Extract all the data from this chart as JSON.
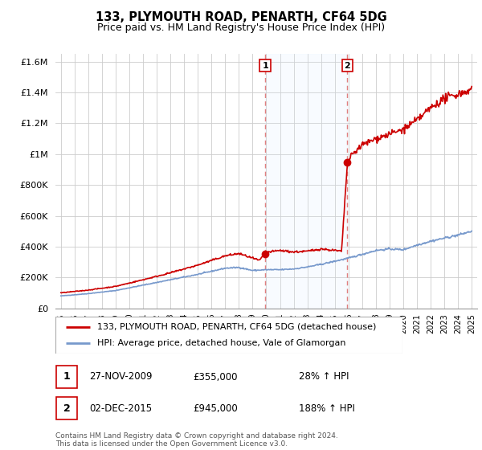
{
  "title": "133, PLYMOUTH ROAD, PENARTH, CF64 5DG",
  "subtitle": "Price paid vs. HM Land Registry's House Price Index (HPI)",
  "legend_line1": "133, PLYMOUTH ROAD, PENARTH, CF64 5DG (detached house)",
  "legend_line2": "HPI: Average price, detached house, Vale of Glamorgan",
  "footnote": "Contains HM Land Registry data © Crown copyright and database right 2024.\nThis data is licensed under the Open Government Licence v3.0.",
  "hpi_color": "#7799cc",
  "price_color": "#cc0000",
  "vline_color": "#e08080",
  "shade_color": "#ddeeff",
  "ylim_max": 1650000,
  "ylim_min": 0,
  "sale1_year": 2009.92,
  "sale2_year": 2015.92,
  "sale1_price": 355000,
  "sale2_price": 945000,
  "hpi_anchors_x": [
    1995,
    1997,
    1999,
    2001,
    2003,
    2005,
    2007,
    2008,
    2009,
    2010,
    2011,
    2012,
    2013,
    2014,
    2015,
    2016,
    2017,
    2018,
    2019,
    2020,
    2021,
    2022,
    2023,
    2024,
    2025
  ],
  "hpi_anchors_y": [
    80000,
    95000,
    115000,
    150000,
    185000,
    220000,
    260000,
    265000,
    245000,
    250000,
    250000,
    255000,
    268000,
    285000,
    305000,
    325000,
    350000,
    375000,
    385000,
    380000,
    410000,
    435000,
    455000,
    475000,
    500000
  ],
  "price_anchors_x": [
    1995,
    1997,
    1999,
    2001,
    2003,
    2005,
    2007,
    2008,
    2009.5,
    2009.92,
    2010.2,
    2011,
    2012,
    2013,
    2014,
    2015.5,
    2015.92,
    2016.3,
    2017,
    2018,
    2019,
    2020,
    2021,
    2022,
    2023,
    2024,
    2025
  ],
  "price_anchors_y": [
    100000,
    118000,
    142000,
    185000,
    230000,
    280000,
    340000,
    355000,
    310000,
    355000,
    365000,
    375000,
    365000,
    370000,
    385000,
    370000,
    945000,
    1000000,
    1060000,
    1100000,
    1130000,
    1160000,
    1220000,
    1300000,
    1360000,
    1390000,
    1420000
  ],
  "noise_seed": 42,
  "noise_scale_hpi": 0.008,
  "noise_scale_price": 0.01
}
